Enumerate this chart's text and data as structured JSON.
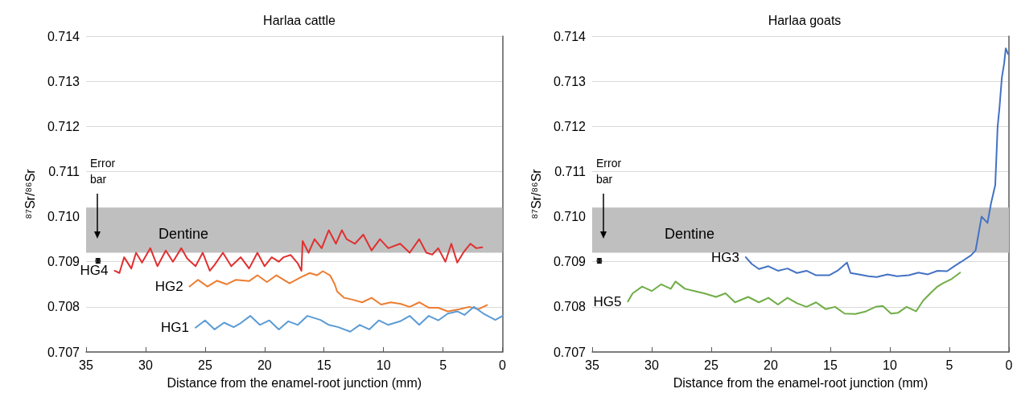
{
  "chart_data": [
    {
      "type": "line",
      "title": "Harlaa cattle",
      "xlabel": "Distance from the enamel-root junction (mm)",
      "ylabel": "⁸⁷Sr/⁸⁶Sr",
      "xlim": [
        35,
        0
      ],
      "xticks": [
        35,
        30,
        25,
        20,
        15,
        10,
        5,
        0
      ],
      "ylim": [
        0.707,
        0.714
      ],
      "yticks": [
        0.707,
        0.708,
        0.709,
        {
          "value": 0.71,
          "label": "0.710"
        },
        0.711,
        0.712,
        0.713,
        0.714
      ],
      "grid": "y",
      "marker": "none",
      "line_style": "solid",
      "bands": [
        {
          "axis": "y",
          "from": 0.7092,
          "to": 0.7102,
          "label": "Dentine",
          "color": "#bfbfbf"
        }
      ],
      "annotations": [
        "Error bar"
      ],
      "series": [
        {
          "name": "HG4",
          "color": "#e03030",
          "x": [
            32.6,
            32.2,
            31.8,
            31.2,
            30.8,
            30.3,
            29.6,
            29.0,
            28.3,
            27.7,
            27.0,
            26.5,
            25.8,
            25.2,
            24.6,
            24.2,
            23.5,
            22.8,
            22.0,
            21.3,
            20.6,
            20.0,
            19.4,
            18.8,
            18.4,
            17.8,
            17.2,
            16.9,
            16.8,
            16.3,
            15.8,
            15.2,
            14.6,
            14.0,
            13.5,
            13.1,
            12.4,
            11.7,
            11.0,
            10.3,
            9.6,
            8.6,
            7.8,
            7.0,
            6.4,
            5.9,
            5.4,
            4.8,
            4.3,
            3.8,
            3.3,
            2.7,
            2.2,
            1.7
          ],
          "values": [
            0.7088,
            0.70875,
            0.7091,
            0.70885,
            0.7092,
            0.70898,
            0.7093,
            0.7089,
            0.70925,
            0.709,
            0.7093,
            0.70907,
            0.7089,
            0.7092,
            0.7088,
            0.70893,
            0.7092,
            0.7089,
            0.7091,
            0.70885,
            0.7092,
            0.7089,
            0.7091,
            0.709,
            0.7091,
            0.70915,
            0.70896,
            0.7088,
            0.70946,
            0.7092,
            0.7095,
            0.7093,
            0.7097,
            0.7094,
            0.7097,
            0.7095,
            0.7094,
            0.7096,
            0.70925,
            0.7095,
            0.7093,
            0.7094,
            0.7092,
            0.7095,
            0.7092,
            0.70916,
            0.7093,
            0.709,
            0.7094,
            0.70898,
            0.7092,
            0.7094,
            0.7093,
            0.70932
          ]
        },
        {
          "name": "HG2",
          "color": "#ed7d31",
          "x": [
            26.3,
            25.6,
            24.8,
            24.0,
            23.2,
            22.4,
            21.3,
            20.6,
            19.8,
            19.0,
            17.9,
            17.0,
            16.2,
            15.6,
            15.1,
            14.5,
            14.1,
            13.9,
            13.3,
            12.6,
            11.8,
            11.0,
            10.2,
            9.4,
            8.6,
            7.8,
            7.0,
            6.2,
            5.4,
            4.6,
            3.6,
            2.8,
            2.0,
            1.3
          ],
          "values": [
            0.70845,
            0.7086,
            0.70845,
            0.70858,
            0.7085,
            0.7086,
            0.70857,
            0.7087,
            0.70855,
            0.7087,
            0.70852,
            0.70865,
            0.70875,
            0.7087,
            0.70879,
            0.7087,
            0.7085,
            0.70834,
            0.7082,
            0.70816,
            0.7081,
            0.7082,
            0.70805,
            0.7081,
            0.70807,
            0.708,
            0.7081,
            0.70798,
            0.70798,
            0.7079,
            0.70795,
            0.708,
            0.70795,
            0.70804
          ]
        },
        {
          "name": "HG1",
          "color": "#5b9bd5",
          "x": [
            25.8,
            25.0,
            24.2,
            23.4,
            22.6,
            22.0,
            21.2,
            20.4,
            19.6,
            18.8,
            18.0,
            17.2,
            16.4,
            15.3,
            14.6,
            13.8,
            12.8,
            12.0,
            11.2,
            10.4,
            9.6,
            8.6,
            7.8,
            7.0,
            6.2,
            5.4,
            4.6,
            3.8,
            3.2,
            2.4,
            1.6,
            0.6,
            0
          ],
          "values": [
            0.70754,
            0.7077,
            0.7075,
            0.70765,
            0.70755,
            0.70764,
            0.7078,
            0.7076,
            0.7077,
            0.7075,
            0.70768,
            0.7076,
            0.7078,
            0.70771,
            0.7076,
            0.70755,
            0.70745,
            0.7076,
            0.7075,
            0.7077,
            0.7076,
            0.70768,
            0.7078,
            0.7076,
            0.7078,
            0.7077,
            0.70785,
            0.7079,
            0.70782,
            0.708,
            0.70785,
            0.70771,
            0.7078
          ]
        },
        {
          "type": "scatter",
          "color": "#000000",
          "marker": "circle",
          "x": [
            34
          ],
          "values": [
            0.70902
          ],
          "errors": [
            5e-05
          ]
        }
      ]
    },
    {
      "type": "line",
      "title": "Harlaa goats",
      "xlabel": "Distance from the enamel-root junction (mm)",
      "ylabel": "⁸⁷Sr/⁸⁶Sr",
      "xlim": [
        35,
        0
      ],
      "xticks": [
        35,
        30,
        25,
        20,
        15,
        10,
        5,
        0
      ],
      "ylim": [
        0.707,
        0.714
      ],
      "yticks": [
        0.707,
        0.708,
        0.709,
        {
          "value": 0.71,
          "label": "0.710"
        },
        0.711,
        0.712,
        0.713,
        0.714
      ],
      "grid": "y",
      "marker": "none",
      "line_style": "solid",
      "bands": [
        {
          "axis": "y",
          "from": 0.7092,
          "to": 0.7102,
          "label": "Dentine",
          "color": "#bfbfbf"
        }
      ],
      "annotations": [
        "Error bar"
      ],
      "series": [
        {
          "name": "HG3",
          "color": "#4472c4",
          "x": [
            22.1,
            21.6,
            21.0,
            20.2,
            19.4,
            18.6,
            17.8,
            17.0,
            16.2,
            15.1,
            14.4,
            13.6,
            13.3,
            12.6,
            11.8,
            11.1,
            10.2,
            9.4,
            8.4,
            7.6,
            6.8,
            6.0,
            5.2,
            4.6,
            4.0,
            3.2,
            2.8,
            2.3,
            1.8,
            1.5,
            1.15,
            0.95,
            0.8,
            0.6,
            0.4,
            0.27,
            0.07
          ],
          "values": [
            0.7091,
            0.70895,
            0.70884,
            0.7089,
            0.7088,
            0.70885,
            0.70875,
            0.7088,
            0.7087,
            0.7087,
            0.7088,
            0.70898,
            0.70875,
            0.70872,
            0.70868,
            0.70866,
            0.70872,
            0.70868,
            0.7087,
            0.70876,
            0.70872,
            0.7088,
            0.70879,
            0.7089,
            0.709,
            0.70914,
            0.70925,
            0.71,
            0.70986,
            0.7103,
            0.7107,
            0.712,
            0.7124,
            0.71307,
            0.7134,
            0.71373,
            0.7136
          ]
        },
        {
          "name": "HG5",
          "color": "#70ad47",
          "x": [
            32.0,
            31.6,
            30.8,
            30.0,
            29.2,
            28.4,
            28.0,
            27.2,
            26.4,
            25.6,
            24.6,
            23.8,
            23.0,
            21.9,
            21.0,
            20.2,
            19.4,
            18.6,
            17.8,
            17.0,
            16.2,
            15.4,
            14.6,
            13.8,
            12.9,
            12.0,
            11.2,
            10.6,
            9.9,
            9.3,
            8.6,
            7.8,
            7.2,
            6.6,
            6.0,
            5.5,
            4.8,
            4.1
          ],
          "values": [
            0.70812,
            0.7083,
            0.70845,
            0.70835,
            0.7085,
            0.7084,
            0.70856,
            0.7084,
            0.70835,
            0.7083,
            0.70822,
            0.7083,
            0.7081,
            0.70822,
            0.7081,
            0.7082,
            0.70805,
            0.7082,
            0.70808,
            0.708,
            0.7081,
            0.70795,
            0.708,
            0.70785,
            0.70784,
            0.7079,
            0.708,
            0.70802,
            0.70785,
            0.70787,
            0.708,
            0.7079,
            0.70814,
            0.7083,
            0.70845,
            0.70853,
            0.70862,
            0.70876
          ]
        },
        {
          "type": "scatter",
          "color": "#000000",
          "marker": "circle",
          "x": [
            34.4
          ],
          "values": [
            0.70902
          ],
          "errors": [
            5e-05
          ]
        }
      ]
    }
  ]
}
